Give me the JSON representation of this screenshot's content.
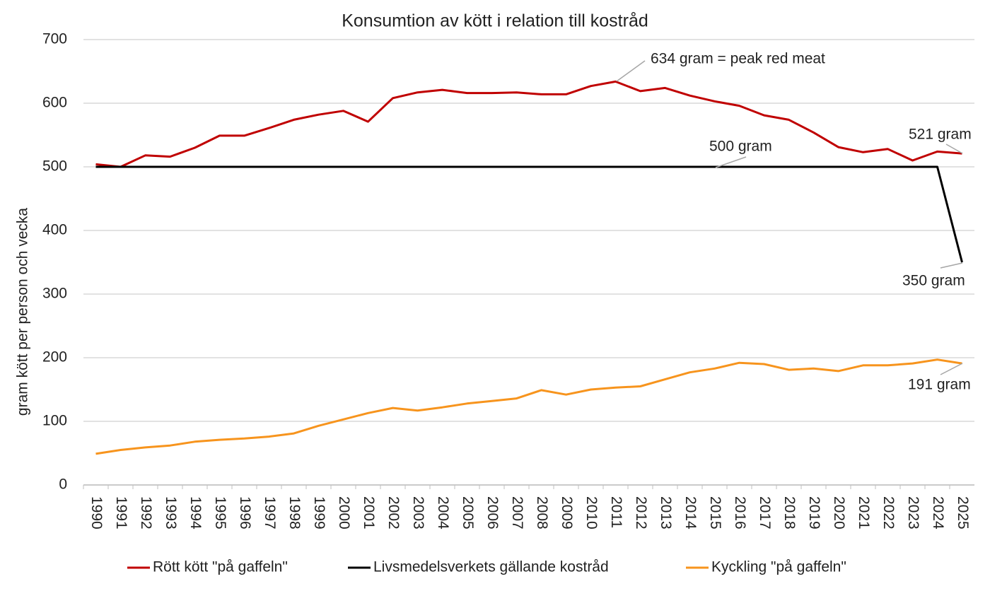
{
  "chart_data": {
    "type": "line",
    "title": "Konsumtion av kött i relation till kostråd",
    "y_label": "gram kött per person och vecka",
    "categories": [
      "1990",
      "1991",
      "1992",
      "1993",
      "1994",
      "1995",
      "1996",
      "1997",
      "1998",
      "1999",
      "2000",
      "2001",
      "2002",
      "2003",
      "2004",
      "2005",
      "2006",
      "2007",
      "2008",
      "2009",
      "2010",
      "2011",
      "2012",
      "2013",
      "2014",
      "2015",
      "2016",
      "2017",
      "2018",
      "2019",
      "2020",
      "2021",
      "2022",
      "2023",
      "2024",
      "2025"
    ],
    "series": [
      {
        "name": "Rött kött \"på gaffeln\"",
        "color": "#c00000",
        "values": [
          504,
          500,
          518,
          516,
          530,
          549,
          549,
          561,
          574,
          582,
          588,
          571,
          608,
          617,
          621,
          616,
          616,
          617,
          614,
          614,
          627,
          634,
          619,
          624,
          612,
          603,
          596,
          581,
          574,
          554,
          531,
          523,
          528,
          510,
          524,
          521
        ]
      },
      {
        "name": "Livsmedelsverkets gällande kostråd",
        "color": "#000000",
        "values": [
          500,
          500,
          500,
          500,
          500,
          500,
          500,
          500,
          500,
          500,
          500,
          500,
          500,
          500,
          500,
          500,
          500,
          500,
          500,
          500,
          500,
          500,
          500,
          500,
          500,
          500,
          500,
          500,
          500,
          500,
          500,
          500,
          500,
          500,
          500,
          350
        ]
      },
      {
        "name": "Kyckling \"på gaffeln\"",
        "color": "#f7941d",
        "values": [
          49,
          55,
          59,
          62,
          68,
          71,
          73,
          76,
          81,
          93,
          103,
          113,
          121,
          117,
          122,
          128,
          132,
          136,
          149,
          142,
          150,
          153,
          155,
          166,
          177,
          183,
          192,
          190,
          181,
          183,
          179,
          188,
          188,
          191,
          197,
          191
        ]
      }
    ],
    "annotations": [
      "634 gram = peak red meat",
      "521 gram",
      "500 gram",
      "350 gram",
      "191 gram"
    ],
    "ylim": [
      0,
      700
    ],
    "yticks": [
      0,
      100,
      200,
      300,
      400,
      500,
      600,
      700
    ],
    "grid": true,
    "legend": "bottom"
  }
}
